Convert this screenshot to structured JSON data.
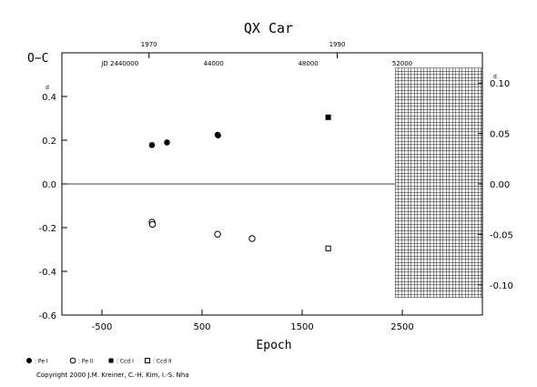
{
  "chart_data": {
    "type": "scatter",
    "title": "QX Car",
    "xlabel": "Epoch",
    "ylabel": "O−C",
    "xlim": [
      -900,
      3300
    ],
    "ylim": [
      -0.6,
      0.6
    ],
    "right_ylim": [
      -0.13,
      0.13
    ],
    "x_ticks": [
      -500,
      500,
      1500,
      2500
    ],
    "y_ticks": [
      -0.6,
      -0.4,
      -0.2,
      0.0,
      0.2,
      0.4
    ],
    "y_tick_labels": [
      "-0.6",
      "-0.4",
      "-0.2",
      "0.0",
      "0.2",
      "0.4"
    ],
    "right_ticks": [
      -0.1,
      -0.05,
      0.0,
      0.05,
      0.1
    ],
    "right_tick_labels": [
      "-0.10",
      "-0.05",
      "0.00",
      "0.05",
      "0.10"
    ],
    "right_top_label": "0.10",
    "right_top_superscript": "d",
    "left_top_superscript": "d",
    "top_year_labels": [
      {
        "text": "1970",
        "epoch": -30
      },
      {
        "text": "1990",
        "epoch": 1850
      }
    ],
    "top_jd_labels": [
      {
        "text": "JD 2440000",
        "epoch": -320
      },
      {
        "text": "44000",
        "epoch": 615
      },
      {
        "text": "48000",
        "epoch": 1560
      },
      {
        "text": "52000",
        "epoch": 2500
      }
    ],
    "grid_region": {
      "x_start": 2430,
      "x_end": 3300,
      "y_min": -0.52,
      "y_max": 0.53
    },
    "zero_line": true,
    "series": [
      {
        "name": ": Pe I",
        "marker": "filled-circle",
        "x": [
          0,
          150,
          655,
          660
        ],
        "y": [
          0.178,
          0.19,
          0.225,
          0.222
        ]
      },
      {
        "name": ": Pe II",
        "marker": "open-circle",
        "x": [
          0,
          5,
          655,
          1000
        ],
        "y": [
          -0.175,
          -0.185,
          -0.23,
          -0.25
        ]
      },
      {
        "name": ": Ccd I",
        "marker": "filled-square",
        "x": [
          1760
        ],
        "y": [
          0.305
        ]
      },
      {
        "name": ": Ccd II",
        "marker": "open-square",
        "x": [
          1760
        ],
        "y": [
          -0.295
        ]
      }
    ]
  },
  "copyright": "Copyright 2000 J.M. Kreiner, C.-H. Kim, I.-S. Nha"
}
